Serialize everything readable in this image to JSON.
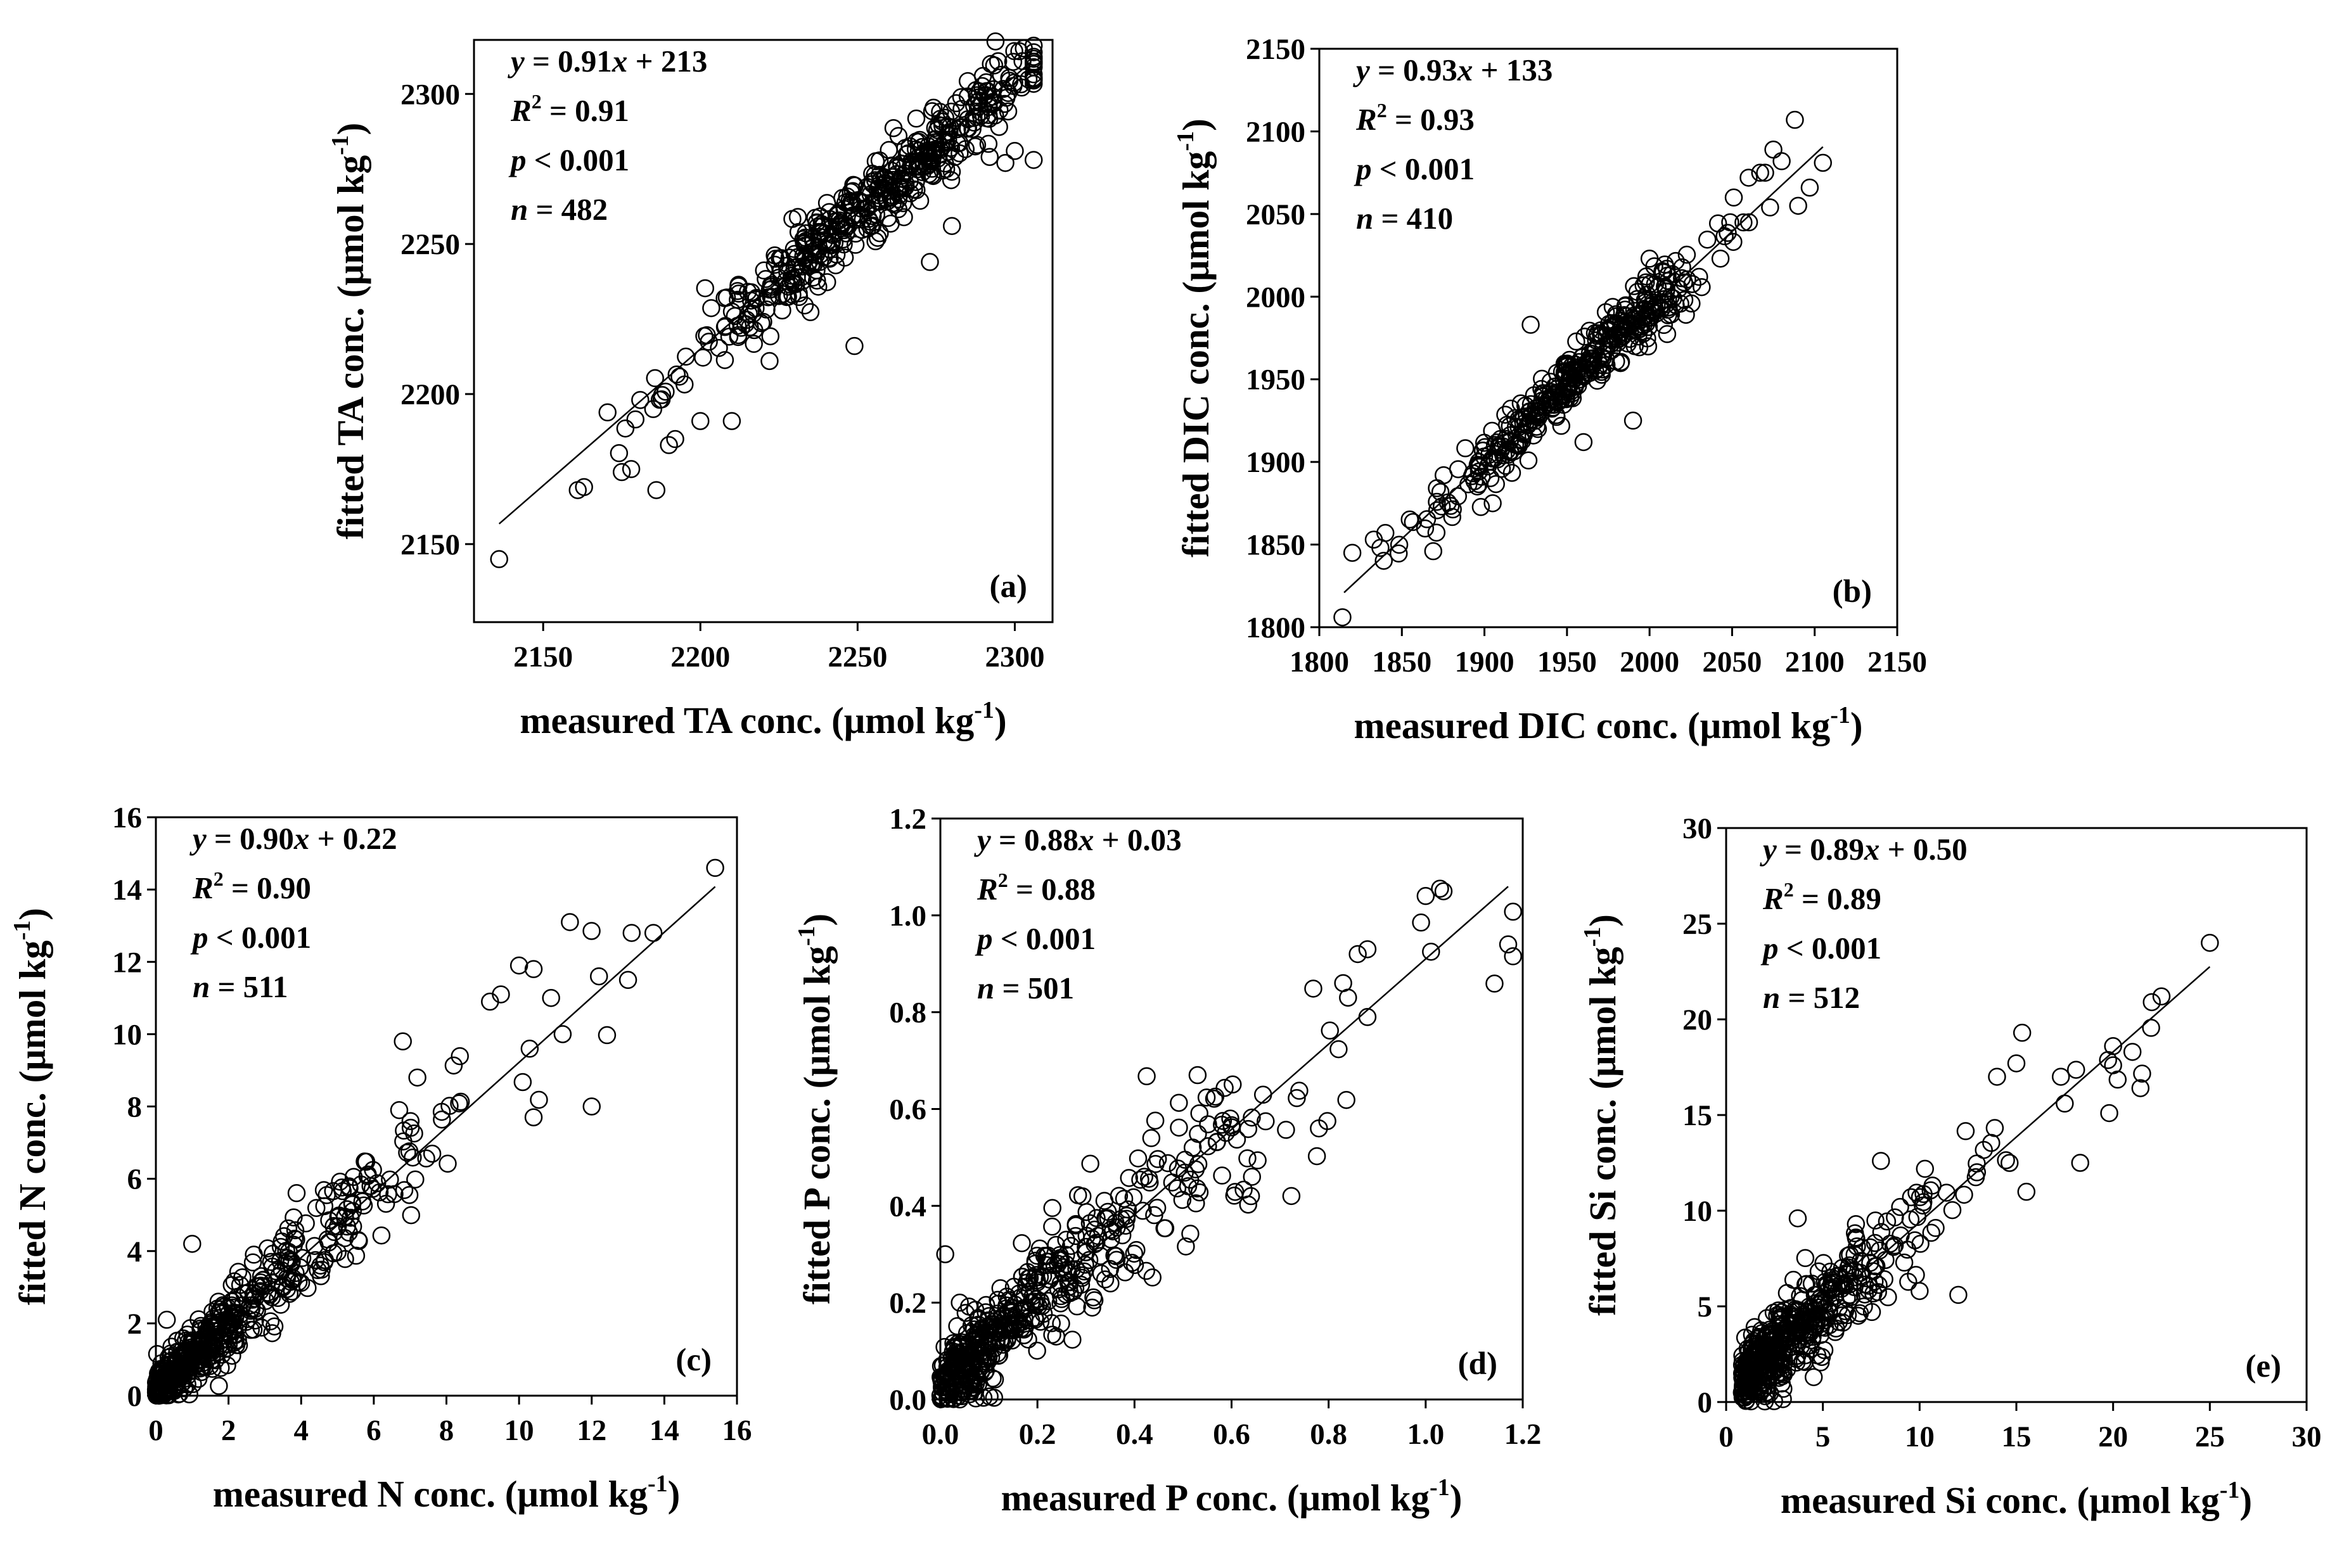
{
  "chart_data": [
    {
      "type": "scatter",
      "panel": "(a)",
      "xlabel": {
        "main": "measured TA conc. (μmol kg",
        "sup": "-1",
        "close": ")"
      },
      "ylabel": {
        "main": "fitted TA conc. (μmol kg",
        "sup": "-1",
        "close": ")"
      },
      "xlim": [
        2128,
        2312
      ],
      "ylim": [
        2124,
        2318
      ],
      "xticks": [
        2150,
        2200,
        2250,
        2300
      ],
      "yticks": [
        2150,
        2200,
        2250,
        2300
      ],
      "annotation": {
        "equation": "y = 0.91x + 213",
        "r2": "0.91",
        "p": "0.001",
        "n": "482"
      },
      "fit": {
        "slope": 0.91,
        "intercept": 213,
        "xrange": [
          2136,
          2305
        ]
      },
      "scatter": {
        "count": 482,
        "xrange": [
          2136,
          2306
        ],
        "slope": 0.91,
        "intercept": 213,
        "spread": 6.5,
        "seed": 11,
        "mode": "gaussian",
        "center": 2255,
        "width": 30
      },
      "points": [
        [
          2136,
          2145
        ],
        [
          2161,
          2168
        ],
        [
          2163,
          2169
        ],
        [
          2175,
          2174
        ],
        [
          2178,
          2175
        ],
        [
          2186,
          2168
        ],
        [
          2185,
          2195
        ],
        [
          2190,
          2183
        ],
        [
          2192,
          2185
        ],
        [
          2200,
          2191
        ],
        [
          2210,
          2191
        ],
        [
          2211,
          2226
        ],
        [
          2212,
          2219
        ],
        [
          2222,
          2211
        ],
        [
          2231,
          2259
        ],
        [
          2249,
          2216
        ],
        [
          2263,
          2286
        ],
        [
          2273,
          2244
        ],
        [
          2280,
          2256
        ],
        [
          2283,
          2289
        ],
        [
          2288,
          2283
        ],
        [
          2292,
          2279
        ],
        [
          2297,
          2277
        ],
        [
          2300,
          2281
        ],
        [
          2306,
          2278
        ],
        [
          2295,
          2289
        ]
      ]
    },
    {
      "type": "scatter",
      "panel": "(b)",
      "xlabel": {
        "main": "measured DIC conc. (μmol kg",
        "sup": "-1",
        "close": ")"
      },
      "ylabel": {
        "main": "fitted DIC conc. (μmol kg",
        "sup": "-1",
        "close": ")"
      },
      "xlim": [
        1800,
        2150
      ],
      "ylim": [
        1800,
        2150
      ],
      "xticks": [
        1800,
        1850,
        1900,
        1950,
        2000,
        2050,
        2100,
        2150
      ],
      "yticks": [
        1800,
        1850,
        1900,
        1950,
        2000,
        2050,
        2100,
        2150
      ],
      "annotation": {
        "equation": "y = 0.93x + 133",
        "r2": "0.93",
        "p": "0.001",
        "n": "410"
      },
      "fit": {
        "slope": 0.93,
        "intercept": 133,
        "xrange": [
          1815,
          2105
        ]
      },
      "scatter": {
        "count": 410,
        "xrange": [
          1815,
          2105
        ],
        "slope": 0.93,
        "intercept": 133,
        "spread": 9,
        "seed": 22,
        "mode": "gaussian",
        "center": 1958,
        "width": 40
      },
      "points": [
        [
          1814,
          1806
        ],
        [
          1820,
          1845
        ],
        [
          1833,
          1853
        ],
        [
          1840,
          1857
        ],
        [
          1837,
          1848
        ],
        [
          1869,
          1846
        ],
        [
          1905,
          1875
        ],
        [
          1928,
          1983
        ],
        [
          1960,
          1912
        ],
        [
          1990,
          1925
        ],
        [
          2000,
          2023
        ],
        [
          2051,
          2060
        ],
        [
          2060,
          2072
        ],
        [
          2067,
          2075
        ],
        [
          2070,
          2075
        ],
        [
          2075,
          2089
        ],
        [
          2073,
          2054
        ],
        [
          2088,
          2107
        ],
        [
          2090,
          2055
        ],
        [
          2097,
          2066
        ],
        [
          2105,
          2081
        ],
        [
          2080,
          2082
        ],
        [
          2030,
          2012
        ]
      ]
    },
    {
      "type": "scatter",
      "panel": "(c)",
      "xlabel": {
        "main": "measured N conc. (μmol kg",
        "sup": "-1",
        "close": ")"
      },
      "ylabel": {
        "main": "fitted N conc. (μmol kg",
        "sup": "-1",
        "close": ")"
      },
      "xlim": [
        0,
        16
      ],
      "ylim": [
        0,
        16
      ],
      "xticks": [
        0,
        2,
        4,
        6,
        8,
        10,
        12,
        14,
        16
      ],
      "yticks": [
        0,
        2,
        4,
        6,
        8,
        10,
        12,
        14,
        16
      ],
      "annotation": {
        "equation": "y = 0.90x + 0.22",
        "r2": "0.90",
        "p": "0.001",
        "n": "511"
      },
      "fit": {
        "slope": 0.9,
        "intercept": 0.22,
        "xrange": [
          0,
          15.4
        ]
      },
      "scatter": {
        "count": 511,
        "xrange": [
          0,
          15.5
        ],
        "slope": 0.9,
        "intercept": 0.22,
        "spread": 0.42,
        "seed": 33,
        "mode": "exp",
        "scale": 2.4
      },
      "points": [
        [
          15.4,
          14.6
        ],
        [
          11.4,
          13.1
        ],
        [
          12.2,
          11.6
        ],
        [
          13.1,
          12.8
        ],
        [
          13.7,
          12.8
        ],
        [
          13.0,
          11.5
        ],
        [
          11.2,
          10.0
        ],
        [
          12.0,
          8.0
        ],
        [
          10.4,
          7.7
        ],
        [
          10.0,
          11.9
        ],
        [
          10.4,
          11.8
        ],
        [
          9.5,
          11.1
        ],
        [
          9.2,
          10.9
        ],
        [
          6.8,
          9.8
        ],
        [
          6.7,
          7.9
        ],
        [
          7.2,
          8.8
        ],
        [
          1.0,
          4.2
        ],
        [
          0.3,
          2.1
        ]
      ]
    },
    {
      "type": "scatter",
      "panel": "(d)",
      "xlabel": {
        "main": "measured P conc. (μmol kg",
        "sup": "-1",
        "close": ")"
      },
      "ylabel": {
        "main": "fitted P conc. (μmol kg",
        "sup": "-1",
        "close": ")"
      },
      "xlim": [
        0,
        1.2
      ],
      "ylim": [
        0,
        1.2
      ],
      "xticks": [
        "0.0",
        "0.2",
        "0.4",
        "0.6",
        "0.8",
        "1.0",
        "1.2"
      ],
      "yticks": [
        "0.0",
        "0.2",
        "0.4",
        "0.6",
        "0.8",
        "1.0",
        "1.2"
      ],
      "annotation": {
        "equation": "y = 0.88x + 0.03",
        "r2": "0.88",
        "p": "0.001",
        "n": "501"
      },
      "fit": {
        "slope": 0.88,
        "intercept": 0.03,
        "xrange": [
          0,
          1.17
        ]
      },
      "scatter": {
        "count": 501,
        "xrange": [
          0,
          1.18
        ],
        "slope": 0.88,
        "intercept": 0.03,
        "spread": 0.045,
        "seed": 44,
        "mode": "exp",
        "scale": 0.22
      },
      "points": [
        [
          1.0,
          1.04
        ],
        [
          1.17,
          0.94
        ],
        [
          0.88,
          0.93
        ],
        [
          0.86,
          0.92
        ],
        [
          0.83,
          0.86
        ],
        [
          0.84,
          0.83
        ],
        [
          0.88,
          0.79
        ],
        [
          0.78,
          0.56
        ],
        [
          0.64,
          0.42
        ],
        [
          0.53,
          0.67
        ],
        [
          0.01,
          0.3
        ],
        [
          0.04,
          0.2
        ]
      ]
    },
    {
      "type": "scatter",
      "panel": "(e)",
      "xlabel": {
        "main": "measured Si conc. (μmol kg",
        "sup": "-1",
        "close": ")"
      },
      "ylabel": {
        "main": "fitted Si conc. (μmol kg",
        "sup": "-1",
        "close": ")"
      },
      "xlim": [
        0,
        30
      ],
      "ylim": [
        0,
        30
      ],
      "xticks": [
        0,
        5,
        10,
        15,
        20,
        25,
        30
      ],
      "yticks": [
        0,
        5,
        10,
        15,
        20,
        25,
        30
      ],
      "annotation": {
        "equation": "y = 0.89x + 0.50",
        "r2": "0.89",
        "p": "0.001",
        "n": "512"
      },
      "fit": {
        "slope": 0.89,
        "intercept": 0.5,
        "xrange": [
          0.8,
          25
        ]
      },
      "scatter": {
        "count": 512,
        "xrange": [
          0.8,
          25
        ],
        "slope": 0.89,
        "intercept": 0.5,
        "spread": 0.9,
        "seed": 55,
        "mode": "exp",
        "scale": 3.2,
        "offset": 0.8
      },
      "points": [
        [
          25.0,
          24.0
        ],
        [
          22.5,
          21.2
        ],
        [
          22.0,
          20.9
        ],
        [
          20.0,
          18.6
        ],
        [
          21.0,
          18.3
        ],
        [
          20.0,
          17.6
        ],
        [
          19.8,
          15.1
        ],
        [
          18.3,
          12.5
        ],
        [
          17.3,
          17.0
        ],
        [
          17.5,
          15.6
        ],
        [
          15.3,
          19.3
        ],
        [
          15.0,
          17.7
        ],
        [
          14.0,
          17.0
        ],
        [
          12.0,
          5.6
        ],
        [
          10.0,
          5.8
        ],
        [
          8.0,
          12.6
        ],
        [
          3.7,
          9.6
        ]
      ]
    }
  ]
}
